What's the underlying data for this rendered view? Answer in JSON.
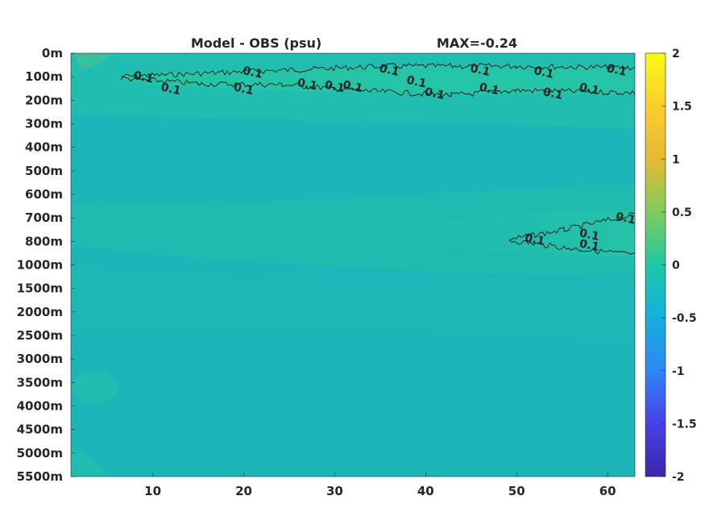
{
  "chart_data": {
    "type": "heatmap",
    "title": "Model - OBS (psu)",
    "max_label": "MAX=-0.24",
    "x_ticks": [
      10,
      20,
      30,
      40,
      50,
      60
    ],
    "xlim": [
      1,
      63
    ],
    "y_ticks": [
      "0m",
      "100m",
      "200m",
      "300m",
      "400m",
      "500m",
      "600m",
      "700m",
      "800m",
      "1000m",
      "1500m",
      "2000m",
      "2500m",
      "3000m",
      "3500m",
      "4000m",
      "4500m",
      "5000m",
      "5500m"
    ],
    "colorbar": {
      "ticks": [
        2,
        1.5,
        1,
        0.5,
        0,
        -0.5,
        -1,
        -1.5,
        -2
      ],
      "range": [
        -2,
        2
      ],
      "colormap": "parula",
      "colors": [
        "#3e26a8",
        "#4743e8",
        "#2e87f7",
        "#13b1dc",
        "#1fc8a5",
        "#82cc5a",
        "#e6b934",
        "#fcce2e",
        "#f9fb14"
      ]
    },
    "background_value_color": "#1cb7b8",
    "contour_level": 0.1,
    "contour_labels": [
      {
        "text": "0.1",
        "x": 9,
        "y": "100m"
      },
      {
        "text": "0.1",
        "x": 12,
        "y": "150m"
      },
      {
        "text": "0.1",
        "x": 20,
        "y": "150m"
      },
      {
        "text": "0.1",
        "x": 21,
        "y": "80m"
      },
      {
        "text": "0.1",
        "x": 27,
        "y": "130m"
      },
      {
        "text": "0.1",
        "x": 30,
        "y": "140m"
      },
      {
        "text": "0.1",
        "x": 32,
        "y": "140m"
      },
      {
        "text": "0.1",
        "x": 36,
        "y": "70m"
      },
      {
        "text": "0.1",
        "x": 39,
        "y": "120m"
      },
      {
        "text": "0.1",
        "x": 41,
        "y": "170m"
      },
      {
        "text": "0.1",
        "x": 46,
        "y": "70m"
      },
      {
        "text": "0.1",
        "x": 47,
        "y": "150m"
      },
      {
        "text": "0.1",
        "x": 53,
        "y": "80m"
      },
      {
        "text": "0.1",
        "x": 54,
        "y": "170m"
      },
      {
        "text": "0.1",
        "x": 58,
        "y": "150m"
      },
      {
        "text": "0.1",
        "x": 61,
        "y": "70m"
      },
      {
        "text": "0.1",
        "x": 52,
        "y": "790m"
      },
      {
        "text": "0.1",
        "x": 58,
        "y": "770m"
      },
      {
        "text": "0.1",
        "x": 62,
        "y": "700m"
      },
      {
        "text": "0.1",
        "x": 58,
        "y": "830m"
      }
    ]
  }
}
